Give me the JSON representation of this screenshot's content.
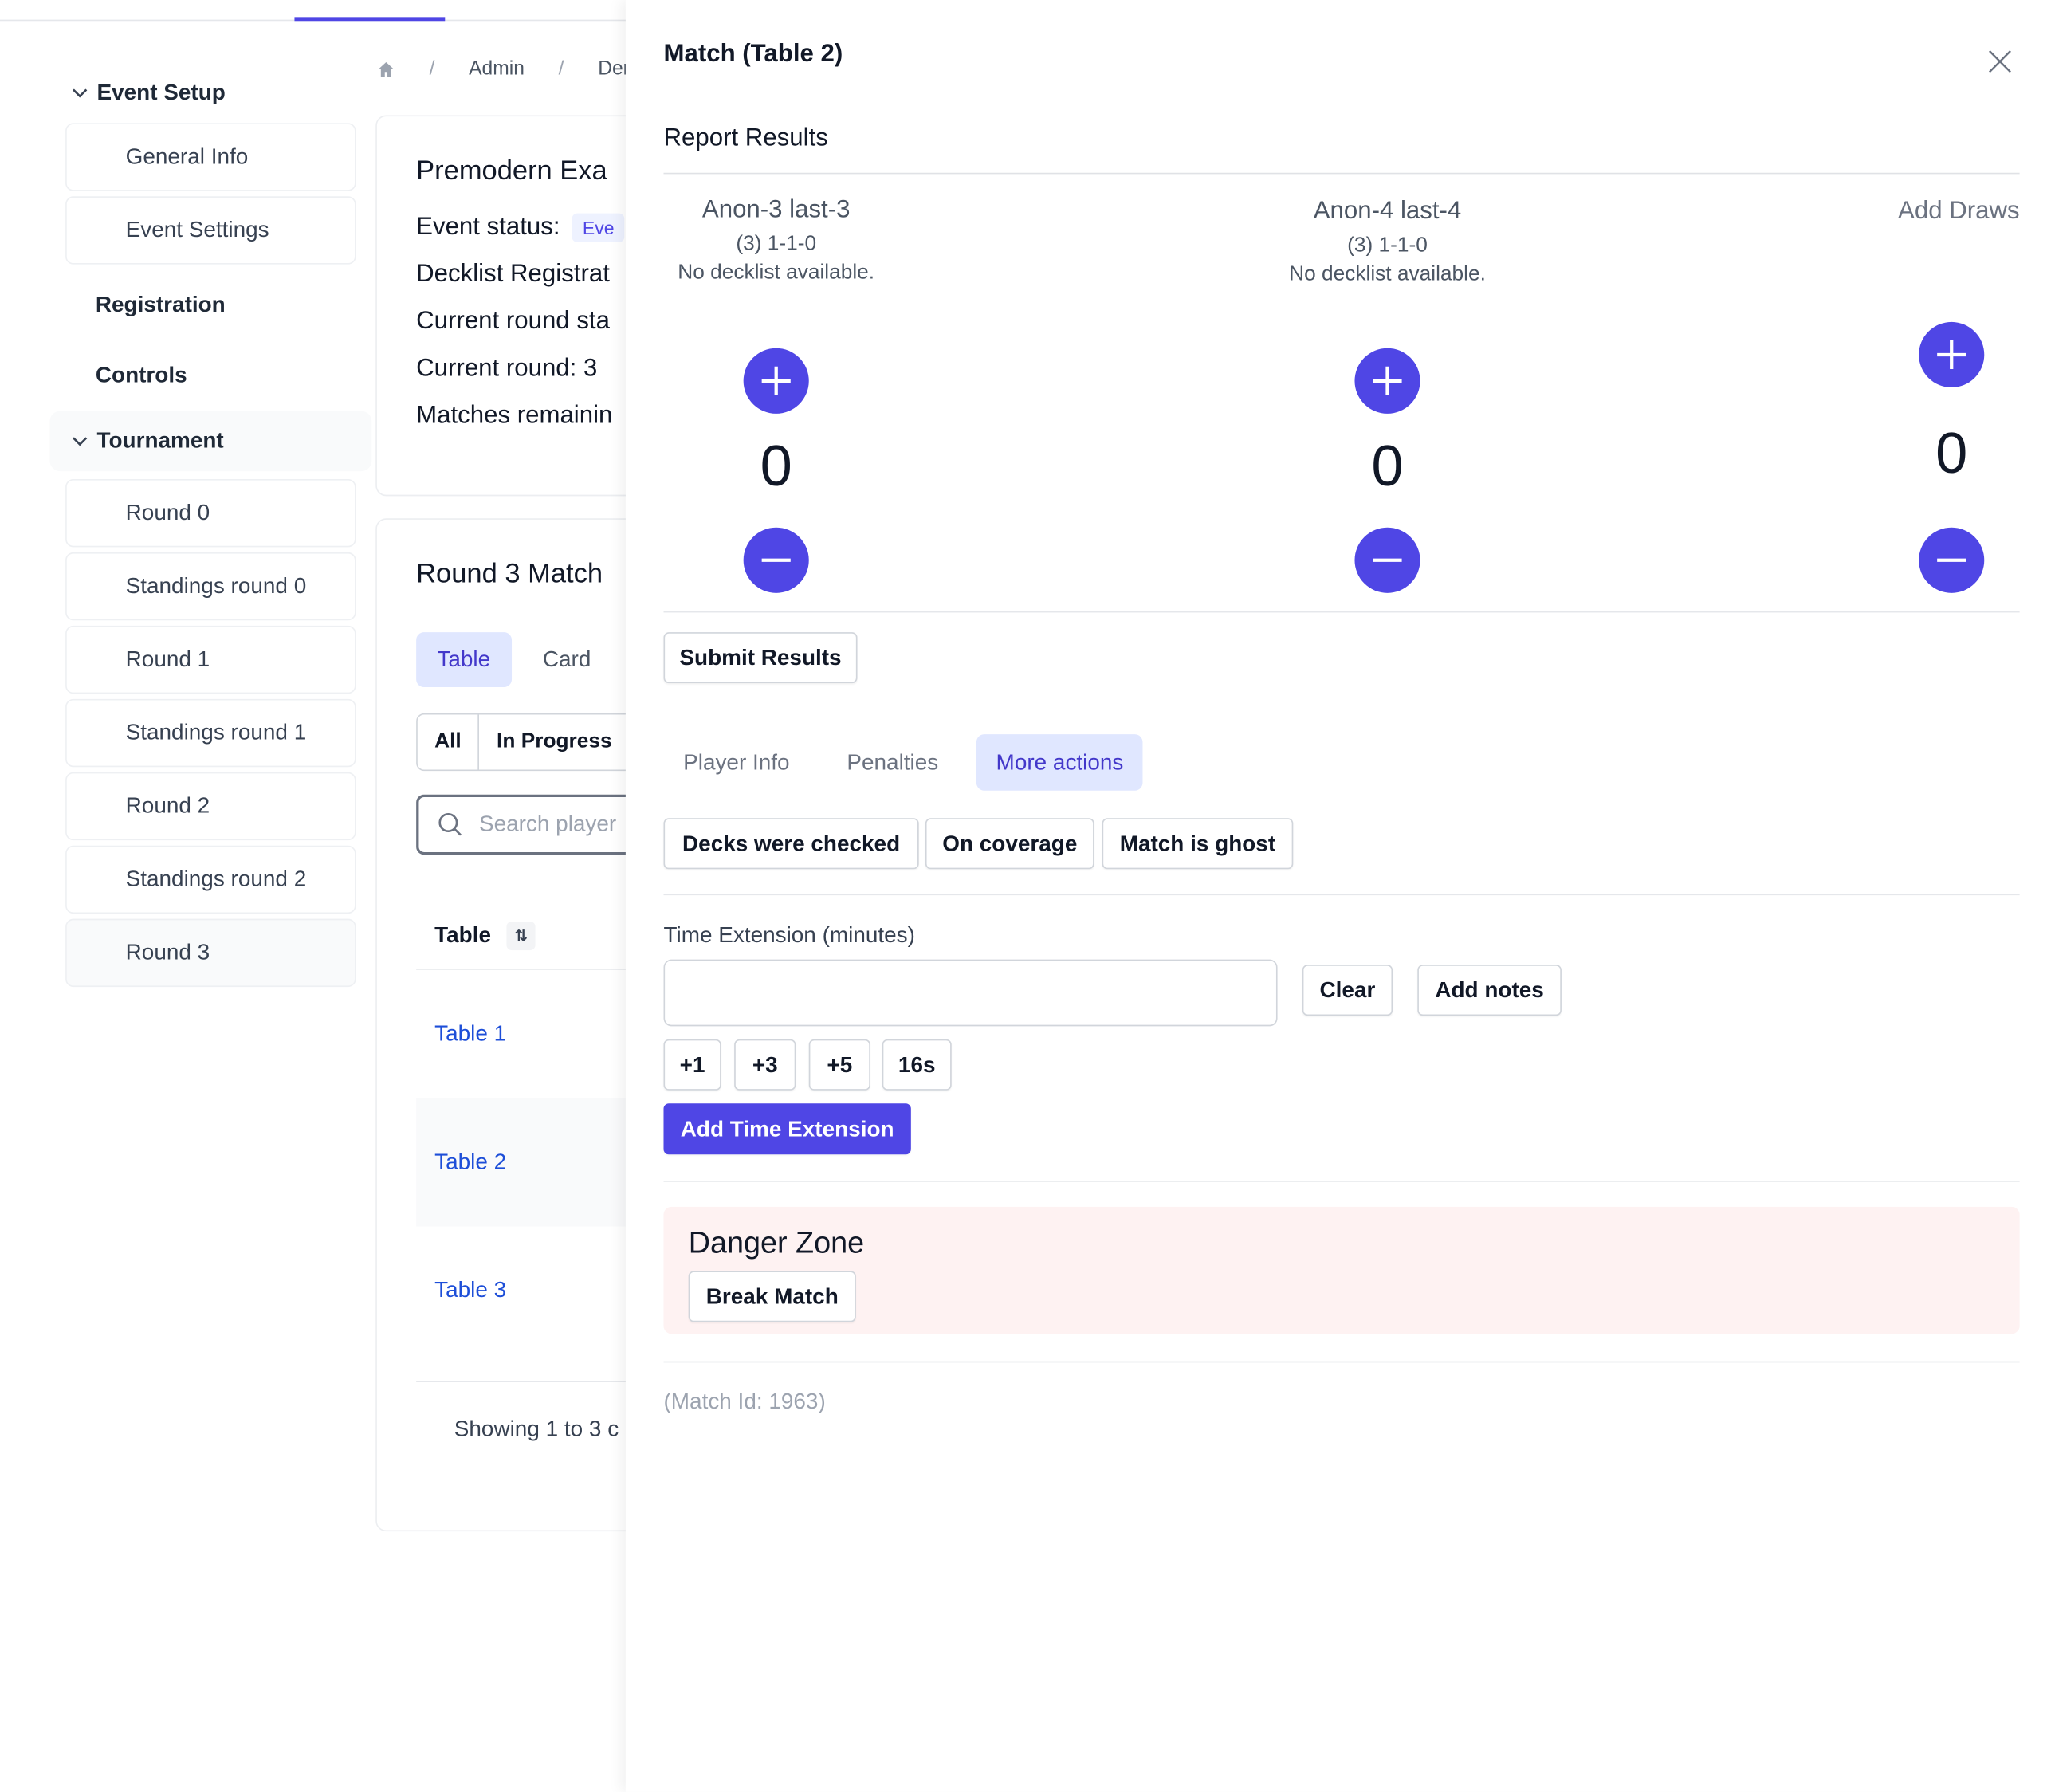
{
  "breadcrumb": {
    "admin": "Admin",
    "current": "Der"
  },
  "sidebar": {
    "event_setup": "Event Setup",
    "event_setup_items": [
      "General Info",
      "Event Settings"
    ],
    "registration": "Registration",
    "controls": "Controls",
    "tournament": "Tournament",
    "tournament_items": [
      "Round 0",
      "Standings round 0",
      "Round 1",
      "Standings round 1",
      "Round 2",
      "Standings round 2",
      "Round 3"
    ]
  },
  "event_card": {
    "title": "Premodern Exa",
    "status_label": "Event status:",
    "status_badge": "Eve",
    "decklist": "Decklist Registrat",
    "round_status": "Current round sta",
    "current_round": "Current round: 3",
    "matches_remaining": "Matches remainin"
  },
  "matches_card": {
    "title": "Round 3 Match",
    "view_tabs": [
      "Table",
      "Card"
    ],
    "filters": [
      "All",
      "In Progress"
    ],
    "search_placeholder": "Search player",
    "column_table": "Table",
    "rows": [
      "Table 1",
      "Table 2",
      "Table 3"
    ],
    "footer": "Showing 1 to 3 c"
  },
  "drawer": {
    "title": "Match (Table 2)",
    "report_results": "Report Results",
    "player1": {
      "name": "Anon-3 last-3",
      "record": "(3) 1-1-0",
      "decklist": "No decklist available.",
      "score": "0"
    },
    "player2": {
      "name": "Anon-4 last-4",
      "record": "(3) 1-1-0",
      "decklist": "No decklist available.",
      "score": "0"
    },
    "draws": {
      "label": "Add Draws",
      "score": "0"
    },
    "submit": "Submit Results",
    "tabs": [
      "Player Info",
      "Penalties",
      "More actions"
    ],
    "actions": [
      "Decks were checked",
      "On coverage",
      "Match is ghost"
    ],
    "time_ext_label": "Time Extension (minutes)",
    "time_ext_value": "",
    "clear": "Clear",
    "add_notes": "Add notes",
    "quick_times": [
      "+1",
      "+3",
      "+5",
      "16s"
    ],
    "add_time": "Add Time Extension",
    "danger_title": "Danger Zone",
    "break_match": "Break Match",
    "match_id": "(Match Id: 1963)"
  },
  "colors": {
    "accent": "#4f46e5",
    "danger_bg": "#fef2f2"
  },
  "icons": [
    "home-icon",
    "chevron-down-icon",
    "search-icon",
    "sort-icon",
    "close-icon",
    "plus-icon",
    "minus-icon"
  ]
}
